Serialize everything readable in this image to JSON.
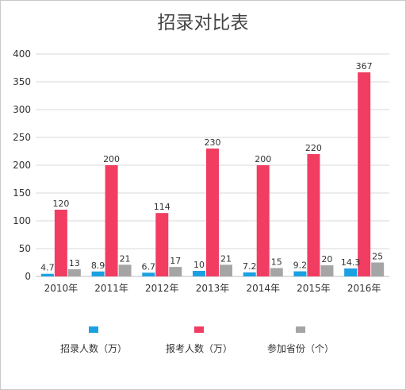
{
  "chart_data": {
    "type": "bar",
    "title": "招录对比表",
    "categories": [
      "2010年",
      "2011年",
      "2012年",
      "2013年",
      "2014年",
      "2015年",
      "2016年"
    ],
    "series": [
      {
        "name": "招录人数（万）",
        "color": "#1ba1e2",
        "values": [
          4.7,
          8.9,
          6.7,
          10,
          7.2,
          9.2,
          14.3
        ]
      },
      {
        "name": "报考人数（万）",
        "color": "#f23d63",
        "values": [
          120,
          200,
          114,
          230,
          200,
          220,
          367
        ]
      },
      {
        "name": "参加省份（个）",
        "color": "#a5a5a5",
        "values": [
          13,
          21,
          17,
          21,
          15,
          20,
          25
        ]
      }
    ],
    "yticks": [
      0,
      50,
      100,
      150,
      200,
      250,
      300,
      350,
      400
    ],
    "ylim": [
      0,
      400
    ],
    "grid": true,
    "legend": "bottom"
  }
}
